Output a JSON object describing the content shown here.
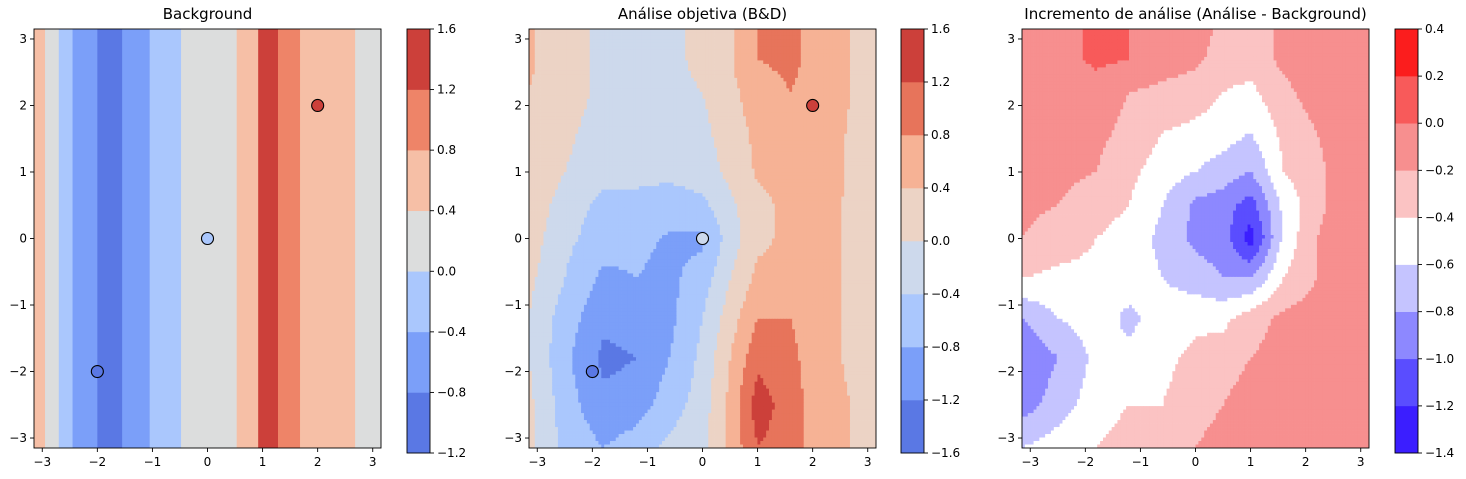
{
  "chart_data": [
    {
      "type": "heatmap",
      "title": "Background",
      "xlim": [
        -3.15,
        3.15
      ],
      "ylim": [
        -3.15,
        3.15
      ],
      "xticks": [
        -3,
        -2,
        -1,
        0,
        1,
        2,
        3
      ],
      "yticks": [
        -3,
        -2,
        -1,
        0,
        1,
        2,
        3
      ],
      "xtick_labels": [
        "−3",
        "−2",
        "−1",
        "0",
        "1",
        "2",
        "3"
      ],
      "ytick_labels": [
        "−3",
        "−2",
        "−1",
        "0",
        "1",
        "2",
        "3"
      ],
      "colorbar": {
        "levels": [
          -1.2,
          -0.8,
          -0.4,
          0.0,
          0.4,
          0.8,
          1.2,
          1.6
        ],
        "tick_labels": [
          "−1.2",
          "−0.8",
          "−0.4",
          "0.0",
          "0.4",
          "0.8",
          "1.2",
          "1.6"
        ],
        "colors": [
          "#5a78e4",
          "#7b9ff9",
          "#aac7fd",
          "#dcdddd",
          "#f6bfa6",
          "#ee8468",
          "#cc403a"
        ]
      },
      "bands": [
        {
          "x0": -3.15,
          "x1": -2.95,
          "band": 4
        },
        {
          "x0": -2.95,
          "x1": -2.7,
          "band": 3
        },
        {
          "x0": -2.7,
          "x1": -2.45,
          "band": 2
        },
        {
          "x0": -2.45,
          "x1": -2.0,
          "band": 1
        },
        {
          "x0": -2.0,
          "x1": -1.55,
          "band": 0
        },
        {
          "x0": -1.55,
          "x1": -1.05,
          "band": 1
        },
        {
          "x0": -1.05,
          "x1": -0.48,
          "band": 2
        },
        {
          "x0": -0.48,
          "x1": 0.53,
          "band": 3
        },
        {
          "x0": 0.53,
          "x1": 0.92,
          "band": 4
        },
        {
          "x0": 0.92,
          "x1": 1.28,
          "band": 6
        },
        {
          "x0": 1.28,
          "x1": 1.68,
          "band": 5
        },
        {
          "x0": 1.68,
          "x1": 2.68,
          "band": 4
        },
        {
          "x0": 2.68,
          "x1": 3.15,
          "band": 3
        }
      ],
      "points": [
        {
          "x": -2,
          "y": -2,
          "color": "#5a78e4"
        },
        {
          "x": 0,
          "y": 0,
          "color": "#aac7fd"
        },
        {
          "x": 2,
          "y": 2,
          "color": "#cc403a"
        }
      ]
    },
    {
      "type": "heatmap",
      "title": "Análise objetiva (B&D)",
      "xlim": [
        -3.15,
        3.15
      ],
      "ylim": [
        -3.15,
        3.15
      ],
      "xticks": [
        -3,
        -2,
        -1,
        0,
        1,
        2,
        3
      ],
      "yticks": [
        -3,
        -2,
        -1,
        0,
        1,
        2,
        3
      ],
      "xtick_labels": [
        "−3",
        "−2",
        "−1",
        "0",
        "1",
        "2",
        "3"
      ],
      "ytick_labels": [
        "−3",
        "−2",
        "−1",
        "0",
        "1",
        "2",
        "3"
      ],
      "colorbar": {
        "levels": [
          -1.6,
          -1.2,
          -0.8,
          -0.4,
          0.0,
          0.4,
          0.8,
          1.2,
          1.6
        ],
        "tick_labels": [
          "−1.6",
          "−1.2",
          "−0.8",
          "−0.4",
          "0.0",
          "0.4",
          "0.8",
          "1.2",
          "1.6"
        ],
        "colors": [
          "#5a78e4",
          "#7b9ff9",
          "#aac7fd",
          "#cdd9ec",
          "#ecd3c5",
          "#f6b295",
          "#e7745b",
          "#cc403a"
        ]
      },
      "grid": {
        "x": [
          -3.15,
          -2.5,
          -1.8,
          -1.2,
          -0.6,
          0.0,
          0.5,
          1.0,
          1.6,
          2.2,
          2.7,
          3.15
        ],
        "y": [
          -3.15,
          -2.5,
          -1.8,
          -1.2,
          -0.6,
          0.0,
          0.5,
          1.0,
          1.6,
          2.2,
          2.7,
          3.15
        ],
        "z": [
          [
            0.1,
            -0.5,
            -0.8,
            -0.6,
            -0.3,
            -0.1,
            0.5,
            1.2,
            1.0,
            0.5,
            0.4,
            0.3
          ],
          [
            0.1,
            -0.6,
            -1.1,
            -1.0,
            -0.6,
            -0.2,
            0.5,
            1.4,
            1.0,
            0.5,
            0.4,
            0.3
          ],
          [
            0.0,
            -0.7,
            -1.3,
            -1.2,
            -0.8,
            -0.3,
            0.4,
            1.1,
            0.9,
            0.5,
            0.35,
            0.3
          ],
          [
            0.0,
            -0.6,
            -1.1,
            -1.0,
            -0.9,
            -0.4,
            0.2,
            0.8,
            0.8,
            0.5,
            0.35,
            0.3
          ],
          [
            0.1,
            -0.4,
            -0.9,
            -0.8,
            -0.9,
            -0.6,
            0.0,
            0.5,
            0.6,
            0.5,
            0.35,
            0.3
          ],
          [
            0.2,
            -0.3,
            -0.6,
            -0.7,
            -0.85,
            -0.9,
            -0.2,
            0.3,
            0.5,
            0.5,
            0.35,
            0.3
          ],
          [
            0.3,
            -0.2,
            -0.5,
            -0.5,
            -0.6,
            -0.5,
            -0.1,
            0.3,
            0.5,
            0.5,
            0.35,
            0.3
          ],
          [
            0.4,
            0.0,
            -0.3,
            -0.3,
            -0.3,
            -0.2,
            0.1,
            0.45,
            0.5,
            0.55,
            0.35,
            0.3
          ],
          [
            0.4,
            0.1,
            -0.2,
            -0.2,
            -0.2,
            -0.1,
            0.2,
            0.5,
            0.6,
            0.6,
            0.35,
            0.3
          ],
          [
            0.4,
            0.2,
            -0.1,
            -0.1,
            -0.1,
            0.0,
            0.3,
            0.6,
            0.8,
            0.6,
            0.4,
            0.3
          ],
          [
            0.45,
            0.2,
            -0.1,
            -0.1,
            -0.1,
            0.1,
            0.35,
            0.8,
            0.9,
            0.6,
            0.4,
            0.3
          ],
          [
            0.45,
            0.2,
            -0.1,
            -0.1,
            -0.1,
            0.1,
            0.35,
            0.8,
            0.9,
            0.6,
            0.4,
            0.3
          ]
        ]
      },
      "points": [
        {
          "x": -2,
          "y": -2,
          "color": "#5a78e4"
        },
        {
          "x": 0,
          "y": 0,
          "color": "#cdd9ec"
        },
        {
          "x": 2,
          "y": 2,
          "color": "#cc403a"
        }
      ]
    },
    {
      "type": "heatmap",
      "title": "Incremento de análise (Análise - Background)",
      "xlim": [
        -3.15,
        3.15
      ],
      "ylim": [
        -3.15,
        3.15
      ],
      "xticks": [
        -3,
        -2,
        -1,
        0,
        1,
        2,
        3
      ],
      "yticks": [
        -3,
        -2,
        -1,
        0,
        1,
        2,
        3
      ],
      "xtick_labels": [
        "−3",
        "−2",
        "−1",
        "0",
        "1",
        "2",
        "3"
      ],
      "ytick_labels": [
        "−3",
        "−2",
        "−1",
        "0",
        "1",
        "2",
        "3"
      ],
      "colorbar": {
        "levels": [
          -1.4,
          -1.2,
          -1.0,
          -0.8,
          -0.6,
          -0.4,
          -0.2,
          0.0,
          0.2,
          0.4
        ],
        "tick_labels": [
          "−1.4",
          "−1.2",
          "−1.0",
          "−0.8",
          "−0.6",
          "−0.4",
          "−0.2",
          "0.0",
          "0.2",
          "0.4"
        ],
        "colors": [
          "#3b1eff",
          "#5a4dff",
          "#8d88ff",
          "#c5c4ff",
          "#ffffff",
          "#fbc3c3",
          "#f78f8f",
          "#f85a5a",
          "#fb1d1d"
        ]
      },
      "grid": {
        "x": [
          -3.15,
          -2.5,
          -1.8,
          -1.2,
          -0.6,
          0.0,
          0.5,
          1.0,
          1.6,
          2.2,
          2.7,
          3.15
        ],
        "y": [
          -3.15,
          -2.5,
          -1.8,
          -1.2,
          -0.6,
          0.0,
          0.5,
          1.0,
          1.6,
          2.2,
          2.7,
          3.15
        ],
        "z": [
          [
            -0.6,
            -0.5,
            -0.4,
            -0.3,
            -0.3,
            -0.2,
            -0.1,
            -0.1,
            -0.1,
            -0.1,
            -0.1,
            -0.1
          ],
          [
            -0.9,
            -0.7,
            -0.5,
            -0.4,
            -0.4,
            -0.3,
            -0.2,
            -0.1,
            -0.1,
            -0.1,
            -0.1,
            -0.1
          ],
          [
            -1.0,
            -0.8,
            -0.55,
            -0.55,
            -0.45,
            -0.35,
            -0.3,
            -0.2,
            -0.1,
            -0.1,
            -0.1,
            -0.1
          ],
          [
            -0.8,
            -0.6,
            -0.5,
            -0.65,
            -0.5,
            -0.45,
            -0.45,
            -0.3,
            -0.15,
            -0.1,
            -0.1,
            -0.1
          ],
          [
            -0.4,
            -0.45,
            -0.45,
            -0.5,
            -0.6,
            -0.7,
            -0.8,
            -0.8,
            -0.4,
            -0.2,
            -0.1,
            -0.1
          ],
          [
            -0.2,
            -0.3,
            -0.4,
            -0.5,
            -0.65,
            -0.85,
            -0.9,
            -1.3,
            -0.55,
            -0.2,
            -0.1,
            -0.1
          ],
          [
            -0.15,
            -0.2,
            -0.3,
            -0.4,
            -0.6,
            -0.85,
            -0.9,
            -1.1,
            -0.55,
            -0.25,
            -0.1,
            -0.1
          ],
          [
            -0.1,
            -0.15,
            -0.2,
            -0.35,
            -0.5,
            -0.6,
            -0.7,
            -0.8,
            -0.4,
            -0.25,
            -0.1,
            0.0
          ],
          [
            -0.1,
            -0.1,
            -0.15,
            -0.25,
            -0.4,
            -0.45,
            -0.5,
            -0.6,
            -0.35,
            -0.2,
            -0.1,
            0.0
          ],
          [
            -0.1,
            -0.1,
            -0.1,
            -0.2,
            -0.25,
            -0.3,
            -0.4,
            -0.45,
            -0.25,
            -0.1,
            -0.1,
            -0.05
          ],
          [
            -0.1,
            -0.1,
            0.05,
            0.0,
            -0.1,
            -0.15,
            -0.3,
            -0.3,
            -0.15,
            -0.1,
            -0.1,
            -0.05
          ],
          [
            -0.1,
            -0.1,
            0.05,
            0.0,
            -0.1,
            -0.1,
            -0.25,
            -0.3,
            -0.15,
            -0.1,
            -0.1,
            -0.05
          ]
        ]
      },
      "points": []
    }
  ]
}
